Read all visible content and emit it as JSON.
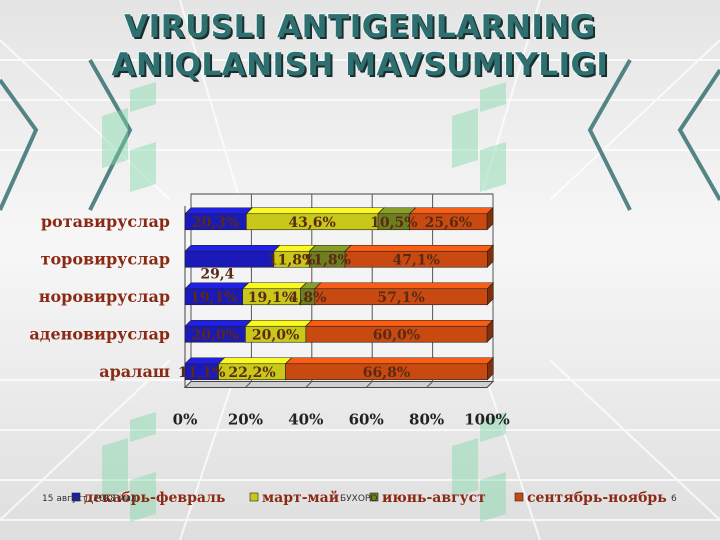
{
  "slide": {
    "title_line1": "VIRUSLI ANTIGENLARNING",
    "title_line2": "ANIQLANISH MAVSUMIYLIGI",
    "footer_date": "15 август, 2018 йил",
    "footer_place": "БУХОРО",
    "page_number": "6"
  },
  "colors": {
    "title": "#2f6f6f",
    "category_label": "#8b2a14",
    "series": [
      "#1a1ab8",
      "#c8c81a",
      "#6e7e1e",
      "#c84a10"
    ]
  },
  "chart_data": {
    "type": "bar",
    "orientation": "horizontal",
    "stacked": "percent",
    "categories": [
      "ротавируслар",
      "торовируслар",
      "норовируслар",
      "аденовируслар",
      "аралаш"
    ],
    "series": [
      {
        "name": "декабрь-февраль",
        "values": [
          20.3,
          29.4,
          19.1,
          20.0,
          11.1
        ]
      },
      {
        "name": "март-май",
        "values": [
          43.6,
          11.8,
          19.1,
          20.0,
          22.2
        ]
      },
      {
        "name": "июнь-август",
        "values": [
          10.5,
          11.8,
          4.8,
          0,
          0
        ]
      },
      {
        "name": "сентябрь-ноябрь",
        "values": [
          25.6,
          47.1,
          57.1,
          60.0,
          66.8
        ]
      }
    ],
    "data_labels": [
      [
        "20,3%",
        "43,6%",
        "10,5%",
        "25,6%"
      ],
      [
        "29,4",
        "11,8%",
        "11,8%",
        "47,1%"
      ],
      [
        "19,1%",
        "19,1%",
        "4,8%",
        "57,1%"
      ],
      [
        "20,0%",
        "20,0%",
        "",
        "60,0%"
      ],
      [
        "11,1%",
        "22,2%",
        "",
        "66,8%"
      ]
    ],
    "x_ticks": [
      "0%",
      "20%",
      "40%",
      "60%",
      "80%",
      "100%"
    ],
    "xlim": [
      0,
      100
    ],
    "legend_position": "bottom",
    "grid": true
  }
}
